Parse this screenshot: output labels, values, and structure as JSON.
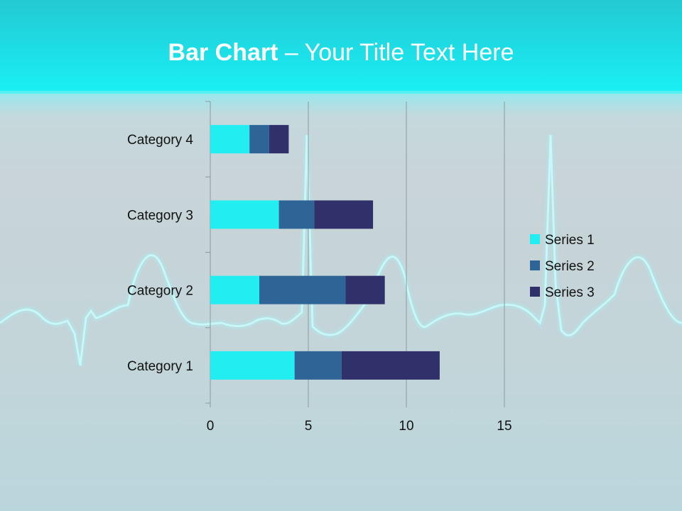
{
  "slide": {
    "title_bold": "Bar Chart",
    "title_rest": " – Your Title Text Here"
  },
  "colors": {
    "series": [
      "#22eef2",
      "#2f6497",
      "#30306a"
    ],
    "axis": "#8c9aa0",
    "gridline": "#8c9aa0",
    "ecg_line": "#bdf8fb"
  },
  "chart_data": {
    "type": "bar",
    "orientation": "horizontal",
    "stacked": true,
    "categories": [
      "Category 1",
      "Category 2",
      "Category 3",
      "Category 4"
    ],
    "series": [
      {
        "name": "Series 1",
        "values": [
          4.3,
          2.5,
          3.5,
          2.0
        ]
      },
      {
        "name": "Series 2",
        "values": [
          2.4,
          4.4,
          1.8,
          1.0
        ]
      },
      {
        "name": "Series 3",
        "values": [
          5.0,
          2.0,
          3.0,
          1.0
        ]
      }
    ],
    "xlim": [
      0,
      15
    ],
    "xticks": [
      "0",
      "5",
      "10",
      "15"
    ],
    "grid": true,
    "legend_position": "right",
    "title": "",
    "xlabel": "",
    "ylabel": ""
  }
}
